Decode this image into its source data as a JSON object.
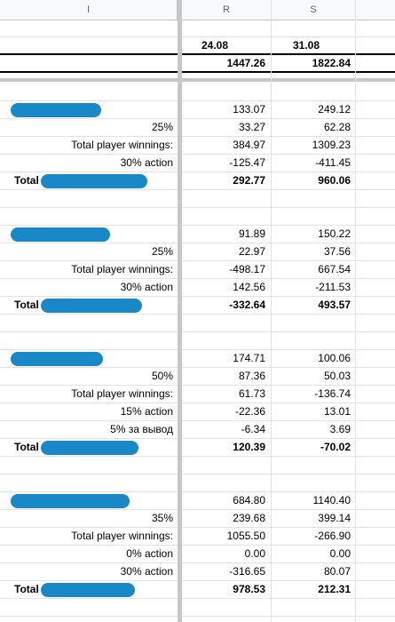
{
  "columns": [
    "I",
    "R",
    "S",
    ""
  ],
  "header": {
    "dates": [
      "24.08",
      "31.08"
    ],
    "totals": [
      "1447.26",
      "1822.84"
    ]
  },
  "blocks": [
    {
      "rows": [
        [
          "",
          "133.07",
          "249.12"
        ],
        [
          "25%",
          "33.27",
          "62.28"
        ],
        [
          "Total player winnings:",
          "384.97",
          "1309.23"
        ],
        [
          "30% action",
          "-125.47",
          "-411.45"
        ]
      ],
      "total": {
        "label": "Total",
        "values": [
          "292.77",
          "960.06"
        ]
      }
    },
    {
      "rows": [
        [
          "",
          "91.89",
          "150.22"
        ],
        [
          "25%",
          "22.97",
          "37.56"
        ],
        [
          "Total player winnings:",
          "-498.17",
          "667.54"
        ],
        [
          "30% action",
          "142.56",
          "-211.53"
        ]
      ],
      "total": {
        "label": "Total",
        "values": [
          "-332.64",
          "493.57"
        ]
      }
    },
    {
      "rows": [
        [
          "",
          "174.71",
          "100.06"
        ],
        [
          "50%",
          "87.36",
          "50.03"
        ],
        [
          "Total player winnings:",
          "61.73",
          "-136.74"
        ],
        [
          "15% action",
          "-22.36",
          "13.01"
        ],
        [
          "5% за вывод",
          "-6.34",
          "3.69"
        ]
      ],
      "total": {
        "label": "Total",
        "values": [
          "120.39",
          "-70.02"
        ]
      }
    },
    {
      "rows": [
        [
          "",
          "684.80",
          "1140.40"
        ],
        [
          "35%",
          "239.68",
          "399.14"
        ],
        [
          "Total player winnings:",
          "1055.50",
          "-266.90"
        ],
        [
          "0% action",
          "0.00",
          "0.00"
        ],
        [
          "30% action",
          "-316.65",
          "80.07"
        ]
      ],
      "total": {
        "label": "Total",
        "values": [
          "978.53",
          "212.31"
        ]
      }
    }
  ],
  "colors": {
    "grid": "#e2e2e2",
    "header_bg": "#f8f9fa",
    "redaction": "#1a87c6"
  }
}
